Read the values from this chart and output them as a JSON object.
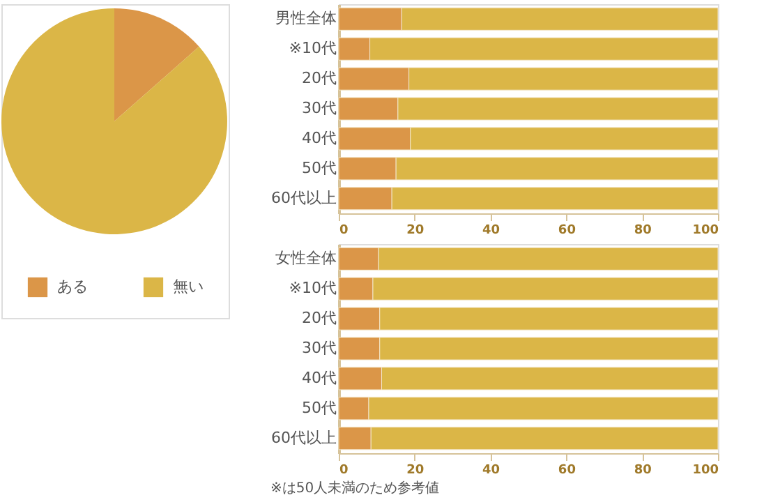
{
  "chart_data": [
    {
      "type": "pie",
      "categories": [
        "ある",
        "無い"
      ],
      "values": [
        13.5,
        86.5
      ],
      "colors": [
        "#db9648",
        "#dbb647"
      ],
      "legend": "bottom"
    },
    {
      "type": "bar",
      "orientation": "horizontal",
      "stacked": true,
      "categories": [
        "男性全体",
        "※10代",
        "20代",
        "30代",
        "40代",
        "50代",
        "60代以上"
      ],
      "xlim": [
        0,
        100
      ],
      "xticks": [
        0,
        20,
        40,
        60,
        80,
        100
      ],
      "grid": false,
      "series": [
        {
          "color": "#db9648",
          "values": [
            16.6,
            8.2,
            18.5,
            15.6,
            18.9,
            15.1,
            14.0
          ]
        },
        {
          "color": "#dbb647",
          "values": [
            83.4,
            91.8,
            81.5,
            84.4,
            81.1,
            84.9,
            86.0
          ]
        }
      ]
    },
    {
      "type": "bar",
      "orientation": "horizontal",
      "stacked": true,
      "categories": [
        "女性全体",
        "※10代",
        "20代",
        "30代",
        "40代",
        "50代",
        "60代以上"
      ],
      "xlim": [
        0,
        100
      ],
      "xticks": [
        0,
        20,
        40,
        60,
        80,
        100
      ],
      "grid": false,
      "series": [
        {
          "color": "#db9648",
          "values": [
            10.5,
            9.0,
            10.8,
            10.8,
            11.3,
            7.9,
            8.5
          ]
        },
        {
          "color": "#dbb647",
          "values": [
            89.5,
            91.0,
            89.2,
            89.2,
            88.7,
            92.1,
            91.5
          ]
        }
      ],
      "annotations": [
        "※は50人未満のため参考値"
      ]
    }
  ]
}
